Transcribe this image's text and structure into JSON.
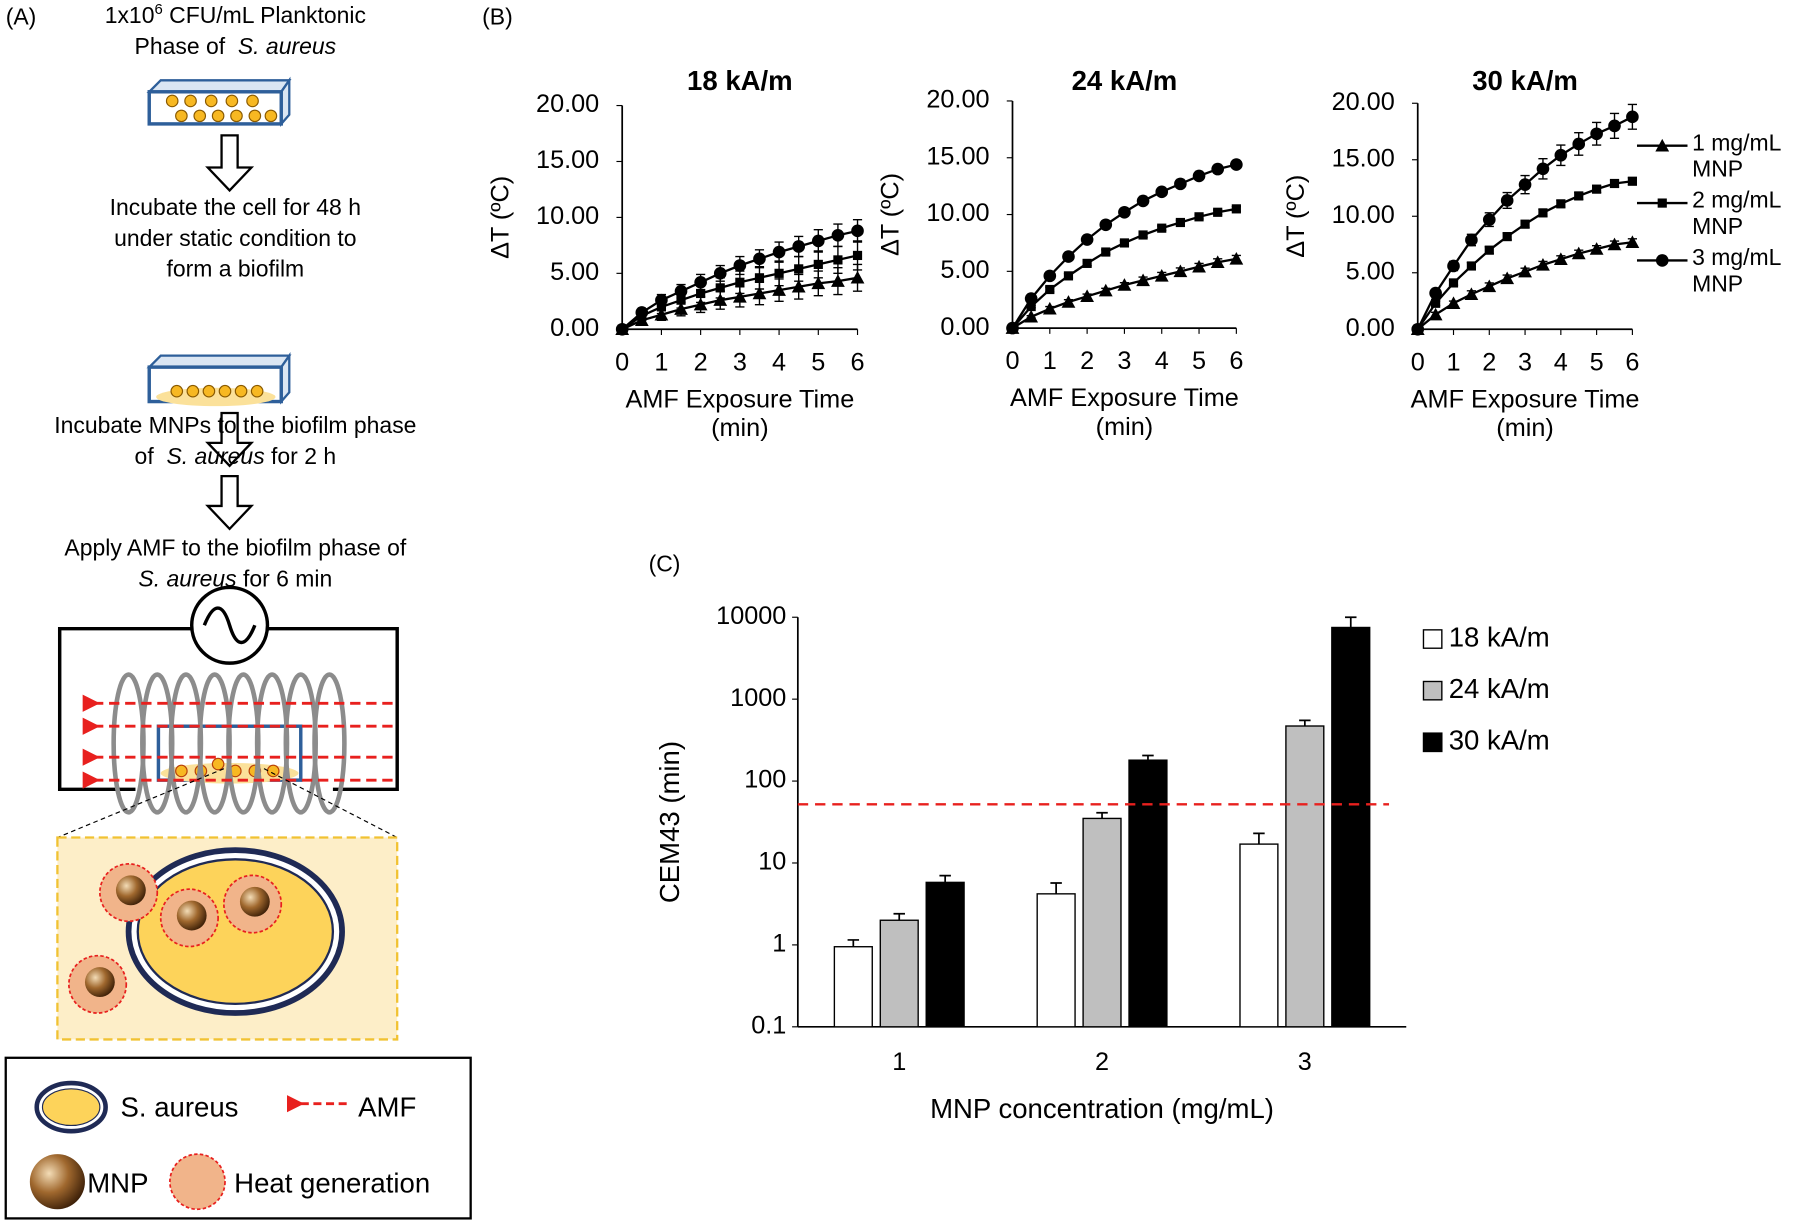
{
  "panel_labels": {
    "a": "(A)",
    "b": "(B)",
    "c": "(C)"
  },
  "schematic": {
    "steps": [
      [
        [
          {
            "text": "1x10"
          },
          {
            "text": "6",
            "sup": true
          },
          {
            "text": " CFU/mL Planktonic"
          }
        ],
        [
          {
            "text": "Phase of  "
          },
          {
            "text": "S. aureus",
            "italic": true
          }
        ]
      ],
      [
        [
          {
            "text": "Incubate the cell for 48 h"
          }
        ],
        [
          {
            "text": "under static condition to"
          }
        ],
        [
          {
            "text": "form a biofilm"
          }
        ]
      ],
      [
        [
          {
            "text": "Incubate MNPs to the biofilm phase"
          }
        ],
        [
          {
            "text": "of  "
          },
          {
            "text": "S. aureus",
            "italic": true
          },
          {
            "text": " for 2 h"
          }
        ]
      ],
      [
        [
          {
            "text": "Apply AMF to the biofilm phase of"
          }
        ],
        [
          {
            "text": "S. aureus",
            "italic": true
          },
          {
            "text": " for 6 min"
          }
        ]
      ]
    ],
    "legend": {
      "cell": "S. aureus",
      "field": "AMF",
      "particle": "MNP",
      "heat": "Heat generation"
    }
  },
  "chart_data": [
    {
      "type": "line",
      "title": "18 kA/m",
      "xlabel": "AMF Exposure Time (min)",
      "ylabel": "ΔT (ºC)",
      "x": [
        0,
        0.5,
        1,
        1.5,
        2,
        2.5,
        3,
        3.5,
        4,
        4.5,
        5,
        5.5,
        6
      ],
      "xlim": [
        0,
        6
      ],
      "xticks": [
        0,
        1,
        2,
        3,
        4,
        5,
        6
      ],
      "ylim": [
        0,
        20
      ],
      "yticks": [
        {
          "value": 0,
          "label": "0.00"
        },
        {
          "value": 5,
          "label": "5.00"
        },
        {
          "value": 10,
          "label": "10.00"
        },
        {
          "value": 15,
          "label": "15.00"
        },
        {
          "value": 20,
          "label": "20.00"
        }
      ],
      "legend": false,
      "series": [
        {
          "name": "1 mg/mL MNP",
          "marker": "triangle",
          "color": "#000000",
          "values": [
            0,
            0.8,
            1.3,
            1.8,
            2.2,
            2.6,
            2.9,
            3.2,
            3.5,
            3.8,
            4.1,
            4.3,
            4.6
          ],
          "errors": [
            0,
            0.3,
            0.5,
            0.6,
            0.7,
            0.8,
            0.9,
            1.0,
            1.0,
            1.1,
            1.1,
            1.2,
            1.2
          ]
        },
        {
          "name": "2 mg/mL MNP",
          "marker": "square",
          "color": "#000000",
          "values": [
            0,
            1.2,
            2.0,
            2.6,
            3.2,
            3.7,
            4.2,
            4.6,
            5.0,
            5.4,
            5.8,
            6.2,
            6.6
          ],
          "errors": [
            0,
            0.4,
            0.6,
            0.7,
            0.8,
            0.9,
            1.0,
            1.0,
            1.1,
            1.1,
            1.2,
            1.2,
            1.3
          ]
        },
        {
          "name": "3 mg/mL MNP",
          "marker": "circle",
          "color": "#000000",
          "values": [
            0,
            1.5,
            2.6,
            3.4,
            4.2,
            5.0,
            5.7,
            6.3,
            6.9,
            7.4,
            7.9,
            8.4,
            8.8
          ],
          "errors": [
            0,
            0.3,
            0.5,
            0.6,
            0.7,
            0.7,
            0.8,
            0.8,
            0.9,
            0.9,
            1.0,
            1.0,
            1.0
          ]
        }
      ]
    },
    {
      "type": "line",
      "title": "24 kA/m",
      "xlabel": "AMF Exposure Time (min)",
      "ylabel": "ΔT (ºC)",
      "x": [
        0,
        0.5,
        1,
        1.5,
        2,
        2.5,
        3,
        3.5,
        4,
        4.5,
        5,
        5.5,
        6
      ],
      "xlim": [
        0,
        6
      ],
      "xticks": [
        0,
        1,
        2,
        3,
        4,
        5,
        6
      ],
      "ylim": [
        0,
        20
      ],
      "yticks": [
        {
          "value": 0,
          "label": "0.00"
        },
        {
          "value": 5,
          "label": "5.00"
        },
        {
          "value": 10,
          "label": "10.00"
        },
        {
          "value": 15,
          "label": "15.00"
        },
        {
          "value": 20,
          "label": "20.00"
        }
      ],
      "legend": false,
      "series": [
        {
          "name": "1 mg/mL MNP",
          "marker": "triangle",
          "color": "#000000",
          "values": [
            0,
            1.0,
            1.7,
            2.3,
            2.8,
            3.3,
            3.8,
            4.2,
            4.6,
            5.0,
            5.4,
            5.8,
            6.1
          ],
          "errors": [
            0,
            0.1,
            0.2,
            0.2,
            0.2,
            0.2,
            0.2,
            0.3,
            0.3,
            0.3,
            0.3,
            0.3,
            0.3
          ]
        },
        {
          "name": "2 mg/mL MNP",
          "marker": "square",
          "color": "#000000",
          "values": [
            0,
            1.9,
            3.4,
            4.6,
            5.7,
            6.7,
            7.5,
            8.2,
            8.8,
            9.3,
            9.8,
            10.2,
            10.5
          ],
          "errors": [
            0,
            0.1,
            0.2,
            0.2,
            0.2,
            0.2,
            0.2,
            0.2,
            0.2,
            0.2,
            0.2,
            0.2,
            0.2
          ]
        },
        {
          "name": "3 mg/mL MNP",
          "marker": "circle",
          "color": "#000000",
          "values": [
            0,
            2.6,
            4.6,
            6.3,
            7.8,
            9.1,
            10.2,
            11.2,
            12.0,
            12.7,
            13.4,
            14.0,
            14.4
          ],
          "errors": [
            0,
            0.1,
            0.2,
            0.2,
            0.2,
            0.2,
            0.2,
            0.2,
            0.2,
            0.2,
            0.2,
            0.2,
            0.2
          ]
        }
      ]
    },
    {
      "type": "line",
      "title": "30 kA/m",
      "xlabel": "AMF Exposure Time (min)",
      "ylabel": "ΔT (ºC)",
      "x": [
        0,
        0.5,
        1,
        1.5,
        2,
        2.5,
        3,
        3.5,
        4,
        4.5,
        5,
        5.5,
        6
      ],
      "xlim": [
        0,
        6
      ],
      "xticks": [
        0,
        1,
        2,
        3,
        4,
        5,
        6
      ],
      "ylim": [
        0,
        20
      ],
      "yticks": [
        {
          "value": 0,
          "label": "0.00"
        },
        {
          "value": 5,
          "label": "5.00"
        },
        {
          "value": 10,
          "label": "10.00"
        },
        {
          "value": 15,
          "label": "15.00"
        },
        {
          "value": 20,
          "label": "20.00"
        }
      ],
      "legend": true,
      "series": [
        {
          "name": "1 mg/mL MNP",
          "marker": "triangle",
          "color": "#000000",
          "values": [
            0,
            1.3,
            2.3,
            3.1,
            3.8,
            4.5,
            5.1,
            5.7,
            6.2,
            6.7,
            7.1,
            7.5,
            7.7
          ],
          "errors": [
            0,
            0.2,
            0.2,
            0.3,
            0.3,
            0.3,
            0.3,
            0.3,
            0.3,
            0.3,
            0.3,
            0.3,
            0.3
          ]
        },
        {
          "name": "2 mg/mL MNP",
          "marker": "square",
          "color": "#000000",
          "values": [
            0,
            2.3,
            4.1,
            5.6,
            7.0,
            8.2,
            9.3,
            10.3,
            11.1,
            11.8,
            12.4,
            12.9,
            13.1
          ],
          "errors": [
            0,
            0.2,
            0.2,
            0.3,
            0.3,
            0.3,
            0.3,
            0.3,
            0.3,
            0.3,
            0.3,
            0.3,
            0.3
          ]
        },
        {
          "name": "3 mg/mL MNP",
          "marker": "circle",
          "color": "#000000",
          "values": [
            0,
            3.2,
            5.6,
            7.9,
            9.7,
            11.4,
            12.8,
            14.2,
            15.4,
            16.4,
            17.3,
            18.0,
            18.8
          ],
          "errors": [
            0,
            0.3,
            0.4,
            0.5,
            0.6,
            0.7,
            0.8,
            0.9,
            0.9,
            1.0,
            1.0,
            1.1,
            1.1
          ]
        }
      ]
    },
    {
      "type": "bar",
      "xlabel": "MNP concentration (mg/mL)",
      "ylabel": "CEM43 (min)",
      "log_scale": true,
      "categories": [
        "1",
        "2",
        "3"
      ],
      "ylim": [
        0.1,
        10000
      ],
      "yticks": [
        0.1,
        1,
        10,
        100,
        1000,
        10000
      ],
      "legend": true,
      "reference_line": {
        "value": 52,
        "color": "#e8201e"
      },
      "series": [
        {
          "name": "18 kA/m",
          "color": "#ffffff",
          "values": [
            0.95,
            4.2,
            17
          ],
          "errors": [
            0.2,
            1.5,
            6
          ]
        },
        {
          "name": "24 kA/m",
          "color": "#bfbfbf",
          "values": [
            2.0,
            35,
            470
          ],
          "errors": [
            0.4,
            6,
            80
          ]
        },
        {
          "name": "30 kA/m",
          "color": "#000000",
          "values": [
            5.8,
            180,
            7500
          ],
          "errors": [
            1.2,
            25,
            2500
          ]
        }
      ]
    }
  ]
}
